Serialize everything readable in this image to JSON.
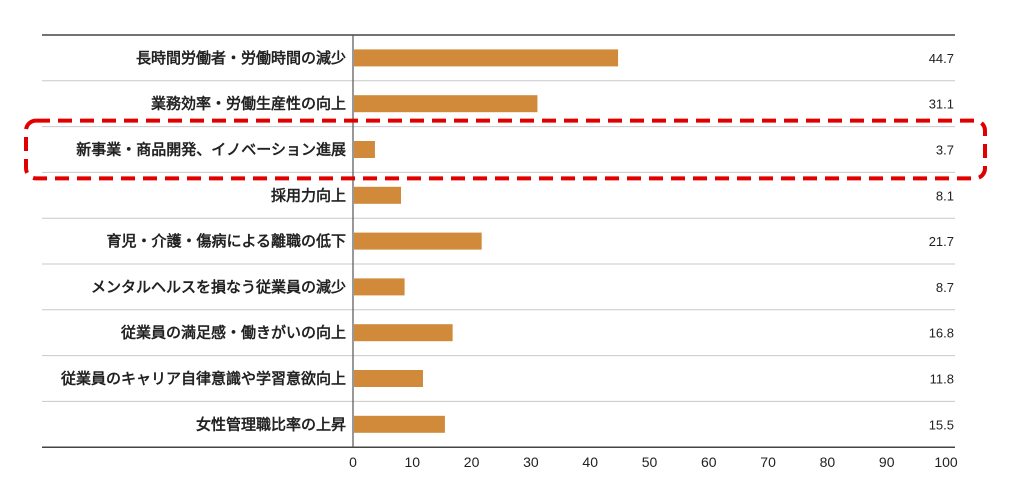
{
  "chart_data": {
    "type": "bar",
    "orientation": "horizontal",
    "categories": [
      "長時間労働者・労働時間の減少",
      "業務効率・労働生産性の向上",
      "新事業・商品開発、イノベーション進展",
      "採用力向上",
      "育児・介護・傷病による離職の低下",
      "メンタルヘルスを損なう従業員の減少",
      "従業員の満足感・働きがいの向上",
      "従業員のキャリア自律意識や学習意欲向上",
      "女性管理職比率の上昇"
    ],
    "values": [
      44.7,
      31.1,
      3.7,
      8.1,
      21.7,
      8.7,
      16.8,
      11.8,
      15.5
    ],
    "value_labels": [
      "44.7",
      "31.1",
      "3.7",
      "8.1",
      "21.7",
      "8.7",
      "16.8",
      "11.8",
      "15.5"
    ],
    "xlim": [
      0,
      100
    ],
    "x_ticks": [
      "0",
      "10",
      "20",
      "30",
      "40",
      "50",
      "60",
      "70",
      "80",
      "90",
      "100"
    ],
    "highlighted_category_index": 2,
    "grid": "horizontal separators",
    "title": "",
    "xlabel": "",
    "ylabel": ""
  },
  "colors": {
    "bar": "#D08A3A",
    "highlight_border": "#E00000",
    "grid": "#C8C8C8",
    "axis": "#555555"
  }
}
